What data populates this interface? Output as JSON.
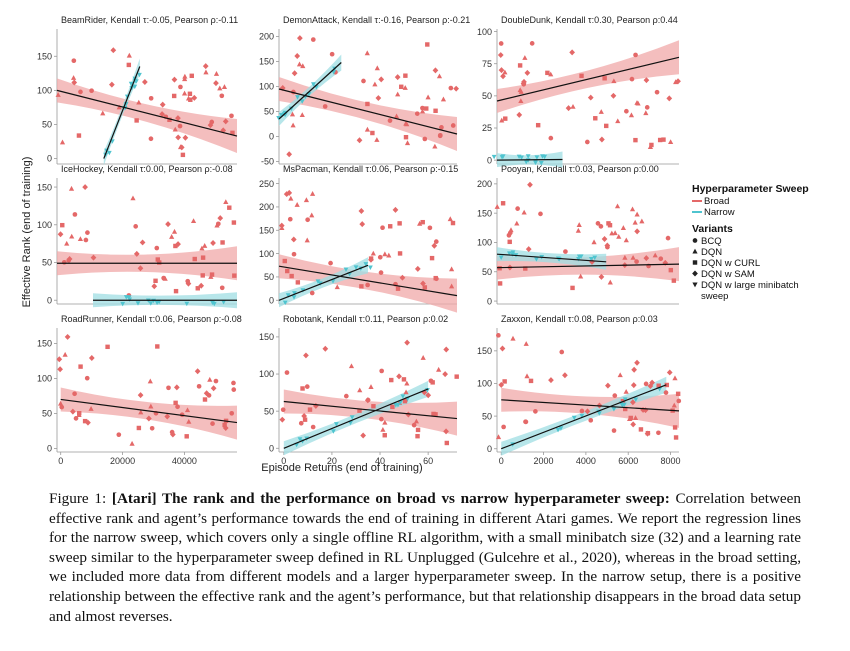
{
  "figure": {
    "ylabel": "Effective Rank (end of training)",
    "xlabel": "Episode Returns (end of training)",
    "colors": {
      "broad": "#e46868",
      "broad_band": "#f0a8a8",
      "narrow": "#4fc4cf",
      "narrow_band": "#9fdde3",
      "fit_line": "#111111"
    },
    "legend": {
      "sweep_title": "Hyperparameter Sweep",
      "sweep_items": [
        {
          "label": "Broad",
          "color": "#e46868"
        },
        {
          "label": "Narrow",
          "color": "#4fc4cf"
        }
      ],
      "variants_title": "Variants",
      "variant_items": [
        {
          "label": "BCQ",
          "marker": "circle"
        },
        {
          "label": "DQN",
          "marker": "triangle"
        },
        {
          "label": "DQN w CURL",
          "marker": "square"
        },
        {
          "label": "DQN w SAM",
          "marker": "diamond"
        },
        {
          "label": "DQN w large minibatch sweep",
          "marker": "triangle-down"
        }
      ]
    }
  },
  "chart_data": [
    {
      "type": "scatter",
      "title": "BeamRider, Kendall τ:-0.05, Pearson ρ:-0.11",
      "ylim": [
        -8,
        190
      ],
      "yticks": [
        "0",
        "50",
        "100",
        "150"
      ],
      "ytick_values": [
        0,
        50,
        100,
        150
      ],
      "xticks": [],
      "xlim": [
        0,
        10
      ],
      "broad_fit": [
        [
          0,
          100
        ],
        [
          10,
          33
        ]
      ],
      "narrow_fit": [
        [
          2.6,
          0
        ],
        [
          4.6,
          135
        ]
      ]
    },
    {
      "type": "scatter",
      "title": "DemonAttack, Kendall τ:-0.16, Pearson ρ:-0.21",
      "ylim": [
        -55,
        215
      ],
      "yticks": [
        "-50",
        "0",
        "50",
        "100",
        "150",
        "200"
      ],
      "ytick_values": [
        -50,
        0,
        50,
        100,
        150,
        200
      ],
      "xticks": [],
      "xlim": [
        0,
        10
      ],
      "broad_fit": [
        [
          0,
          95
        ],
        [
          10,
          5
        ]
      ],
      "narrow_fit": [
        [
          0,
          35
        ],
        [
          3.5,
          148
        ]
      ]
    },
    {
      "type": "scatter",
      "title": "DoubleDunk, Kendall τ:0.30, Pearson ρ:0.44",
      "ylim": [
        -3,
        102
      ],
      "yticks": [
        "0",
        "25",
        "50",
        "75",
        "100"
      ],
      "ytick_values": [
        0,
        25,
        50,
        75,
        100
      ],
      "xticks": [],
      "xlim": [
        0,
        10
      ],
      "broad_fit": [
        [
          0,
          46
        ],
        [
          10,
          80
        ]
      ],
      "narrow_fit": [
        [
          0,
          0
        ],
        [
          3.6,
          0.5
        ]
      ]
    },
    {
      "type": "scatter",
      "title": "IceHockey, Kendall τ:0.00, Pearson ρ:-0.08",
      "ylim": [
        -5,
        162
      ],
      "yticks": [
        "0",
        "50",
        "100",
        "150"
      ],
      "ytick_values": [
        0,
        50,
        100,
        150
      ],
      "xticks": [],
      "xlim": [
        0,
        10
      ],
      "broad_fit": [
        [
          0,
          49
        ],
        [
          10,
          49
        ]
      ],
      "narrow_fit": [
        [
          2.0,
          0
        ],
        [
          10,
          0
        ]
      ]
    },
    {
      "type": "scatter",
      "title": "MsPacman, Kendall τ:0.06, Pearson ρ:-0.15",
      "ylim": [
        -8,
        262
      ],
      "yticks": [
        "0",
        "50",
        "100",
        "150",
        "200",
        "250"
      ],
      "ytick_values": [
        0,
        50,
        100,
        150,
        200,
        250
      ],
      "xticks": [],
      "xlim": [
        0,
        10
      ],
      "broad_fit": [
        [
          0,
          73
        ],
        [
          10,
          10
        ]
      ],
      "narrow_fit": [
        [
          0,
          0
        ],
        [
          5,
          75
        ]
      ]
    },
    {
      "type": "scatter",
      "title": "Pooyan, Kendall τ:0.03, Pearson ρ:0.00",
      "ylim": [
        -5,
        210
      ],
      "yticks": [
        "0",
        "50",
        "100",
        "150",
        "200"
      ],
      "ytick_values": [
        0,
        50,
        100,
        150,
        200
      ],
      "xticks": [],
      "xlim": [
        0,
        10
      ],
      "broad_fit": [
        [
          0,
          57
        ],
        [
          10,
          63
        ]
      ],
      "narrow_fit": [
        [
          0,
          80
        ],
        [
          6,
          67
        ]
      ]
    },
    {
      "type": "scatter",
      "title": "RoadRunner, Kendall τ:0.06, Pearson ρ:-0.08",
      "ylim": [
        -5,
        172
      ],
      "yticks": [
        "0",
        "50",
        "100",
        "150"
      ],
      "ytick_values": [
        0,
        50,
        100,
        150
      ],
      "xticks": [
        "0",
        "20000",
        "40000"
      ],
      "xtick_values": [
        0,
        20000,
        40000
      ],
      "xlim": [
        -1200,
        57000
      ],
      "broad_fit": [
        [
          0,
          70
        ],
        [
          57000,
          37
        ]
      ],
      "narrow_fit": []
    },
    {
      "type": "scatter",
      "title": "Robotank, Kendall τ:0.11, Pearson ρ:0.02",
      "ylim": [
        -5,
        162
      ],
      "yticks": [
        "0",
        "50",
        "100",
        "150"
      ],
      "ytick_values": [
        0,
        50,
        100,
        150
      ],
      "xticks": [
        "0",
        "20",
        "40",
        "60"
      ],
      "xtick_values": [
        0,
        20,
        40,
        60
      ],
      "xlim": [
        -2,
        72
      ],
      "broad_fit": [
        [
          0,
          63
        ],
        [
          72,
          40
        ]
      ],
      "narrow_fit": [
        [
          0,
          0
        ],
        [
          60,
          80
        ]
      ]
    },
    {
      "type": "scatter",
      "title": "Zaxxon, Kendall τ:0.08, Pearson ρ:0.03",
      "ylim": [
        -5,
        185
      ],
      "yticks": [
        "0",
        "50",
        "100",
        "150"
      ],
      "ytick_values": [
        0,
        50,
        100,
        150
      ],
      "xticks": [
        "0",
        "2000",
        "4000",
        "6000",
        "8000"
      ],
      "xtick_values": [
        0,
        2000,
        4000,
        6000,
        8000
      ],
      "xlim": [
        -200,
        8400
      ],
      "broad_fit": [
        [
          0,
          75
        ],
        [
          8400,
          58
        ]
      ],
      "narrow_fit": [
        [
          0,
          0
        ],
        [
          7800,
          98
        ]
      ]
    }
  ],
  "caption": {
    "label": "Figure 1: ",
    "title": "[Atari] The rank and the performance on broad vs narrow hyperparameter sweep:",
    "body": "Correlation between effective rank and agent’s performance towards the end of training in different Atari games. We report the regression lines for the narrow sweep, which covers only a single offline RL algorithm, with a small minibatch size (32) and a learning rate sweep similar to the hyperparameter sweep defined in RL Unplugged (Gulcehre et al., 2020), whereas in the broad setting, we included more data from different models and a larger hyperparameter sweep. In the narrow setup, there is a positive relationship between the effective rank and the agent’s performance, but that relationship disappears in the broad data setup and almost reverses."
  }
}
